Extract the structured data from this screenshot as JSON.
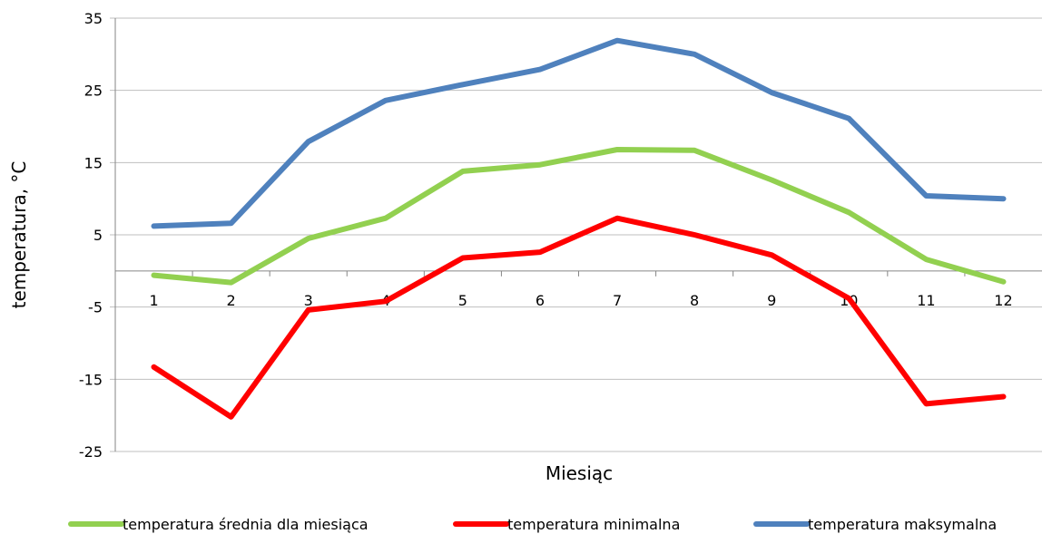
{
  "chart_data": {
    "type": "line",
    "title": "",
    "xlabel": "Miesiąc",
    "ylabel": "temperatura, °C",
    "ylim": [
      -25,
      35
    ],
    "yticks": [
      35,
      25,
      15,
      5,
      -5,
      -15,
      -25
    ],
    "categories": [
      "1",
      "2",
      "3",
      "4",
      "5",
      "6",
      "7",
      "8",
      "9",
      "10",
      "11",
      "12"
    ],
    "grid": "horizontal",
    "legend_position": "bottom",
    "series": [
      {
        "name": "temperatura średnia dla miesiąca",
        "color": "#92D050",
        "values": [
          -0.6,
          -1.6,
          4.5,
          7.3,
          13.8,
          14.7,
          16.8,
          16.7,
          12.6,
          8.1,
          1.6,
          -1.5
        ]
      },
      {
        "name": "temperatura minimalna",
        "color": "#FF0000",
        "values": [
          -13.3,
          -20.2,
          -5.4,
          -4.2,
          1.8,
          2.6,
          7.3,
          5.0,
          2.2,
          -3.8,
          -18.4,
          -17.4
        ]
      },
      {
        "name": "temperatura maksymalna",
        "color": "#4F81BD",
        "values": [
          6.2,
          6.6,
          17.9,
          23.6,
          25.8,
          27.9,
          31.9,
          30.0,
          24.7,
          21.1,
          10.4,
          10.0
        ]
      }
    ]
  }
}
